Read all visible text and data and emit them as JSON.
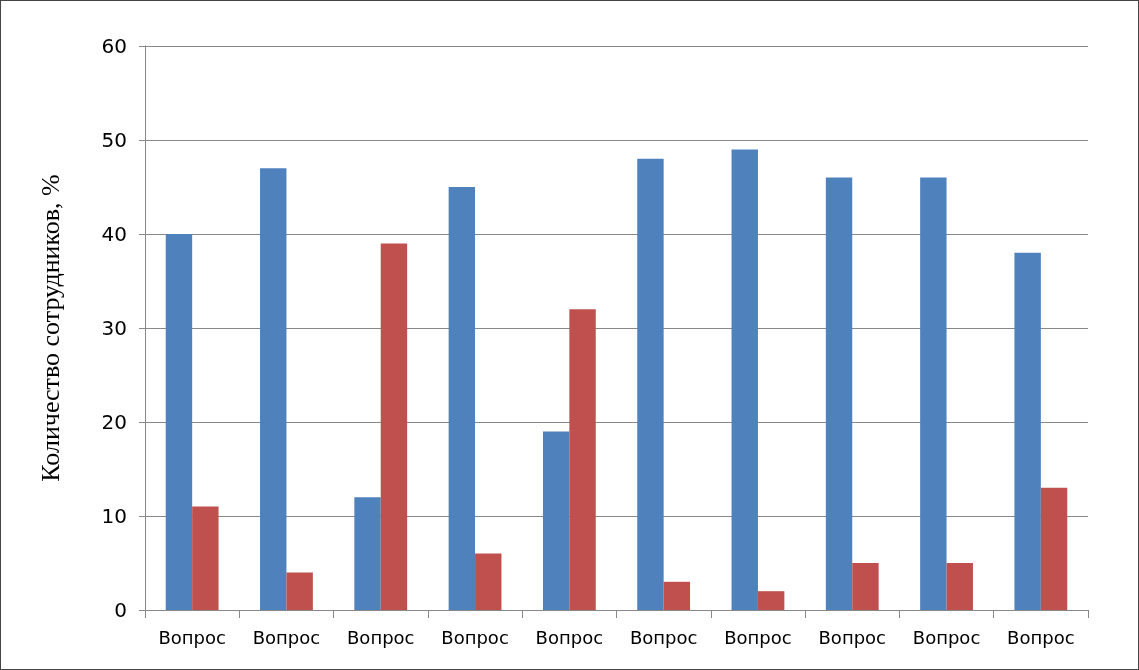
{
  "chart_data": {
    "type": "bar",
    "ylabel": "Количество сотрудников, %",
    "categories": [
      "Вопрос",
      "Вопрос",
      "Вопрос",
      "Вопрос",
      "Вопрос",
      "Вопрос",
      "Вопрос",
      "Вопрос",
      "Вопрос",
      "Вопрос"
    ],
    "series": [
      {
        "color": "#4f81bd",
        "values": [
          40,
          47,
          12,
          45,
          19,
          48,
          49,
          46,
          46,
          38
        ]
      },
      {
        "color": "#c0504d",
        "values": [
          11,
          4,
          39,
          6,
          32,
          3,
          2,
          5,
          5,
          13
        ]
      }
    ],
    "ylim": [
      0,
      60
    ],
    "yticks": [
      0,
      10,
      20,
      30,
      40,
      50,
      60
    ],
    "grid": "y"
  }
}
